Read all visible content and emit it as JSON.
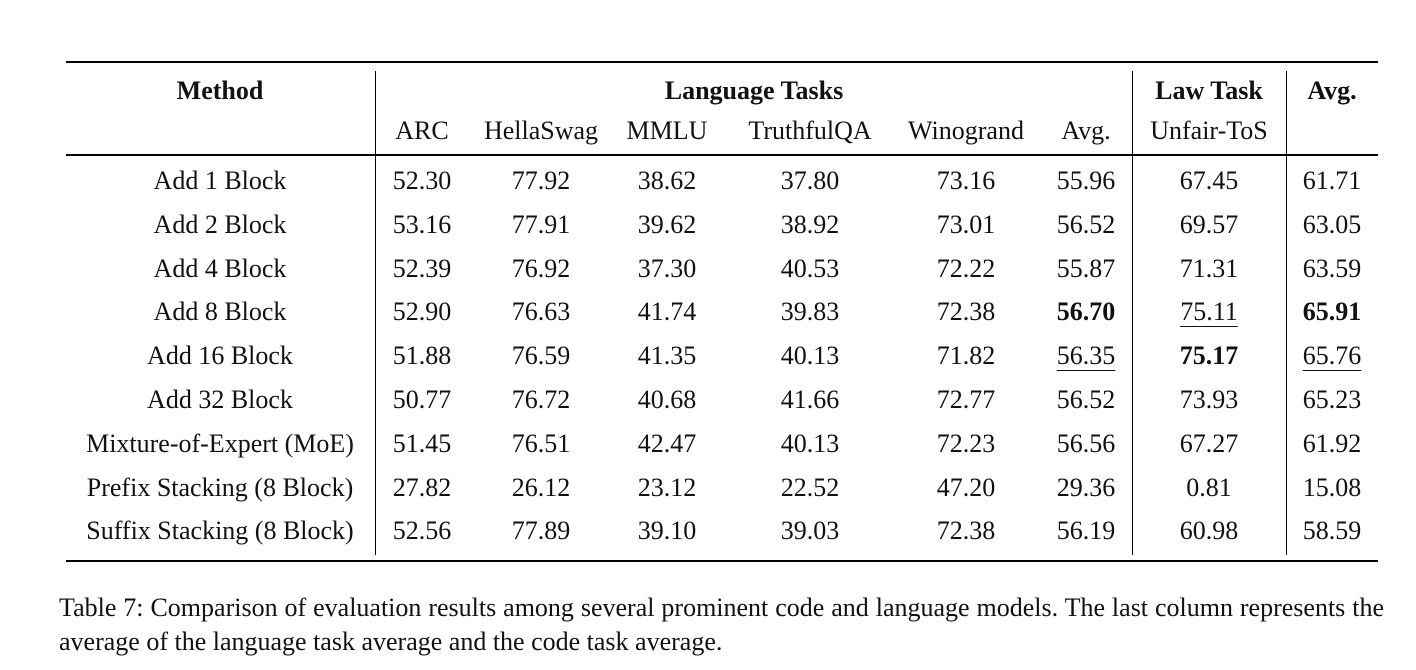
{
  "table": {
    "header_groups": {
      "method": "Method",
      "language_tasks": "Language Tasks",
      "law_task": "Law Task",
      "avg": "Avg."
    },
    "subheaders": [
      "ARC",
      "HellaSwag",
      "MMLU",
      "TruthfulQA",
      "Winogrand",
      "Avg.",
      "Unfair-ToS"
    ],
    "rows": [
      {
        "method": "Add 1 Block",
        "values": [
          "52.30",
          "77.92",
          "38.62",
          "37.80",
          "73.16",
          "55.96",
          "67.45",
          "61.71"
        ],
        "bold": [],
        "underline": []
      },
      {
        "method": "Add 2 Block",
        "values": [
          "53.16",
          "77.91",
          "39.62",
          "38.92",
          "73.01",
          "56.52",
          "69.57",
          "63.05"
        ],
        "bold": [],
        "underline": []
      },
      {
        "method": "Add 4 Block",
        "values": [
          "52.39",
          "76.92",
          "37.30",
          "40.53",
          "72.22",
          "55.87",
          "71.31",
          "63.59"
        ],
        "bold": [],
        "underline": []
      },
      {
        "method": "Add 8 Block",
        "values": [
          "52.90",
          "76.63",
          "41.74",
          "39.83",
          "72.38",
          "56.70",
          "75.11",
          "65.91"
        ],
        "bold": [
          5,
          7
        ],
        "underline": [
          6
        ]
      },
      {
        "method": "Add 16 Block",
        "values": [
          "51.88",
          "76.59",
          "41.35",
          "40.13",
          "71.82",
          "56.35",
          "75.17",
          "65.76"
        ],
        "bold": [
          6
        ],
        "underline": [
          5,
          7
        ]
      },
      {
        "method": "Add 32 Block",
        "values": [
          "50.77",
          "76.72",
          "40.68",
          "41.66",
          "72.77",
          "56.52",
          "73.93",
          "65.23"
        ],
        "bold": [],
        "underline": []
      },
      {
        "method": "Mixture-of-Expert (MoE)",
        "values": [
          "51.45",
          "76.51",
          "42.47",
          "40.13",
          "72.23",
          "56.56",
          "67.27",
          "61.92"
        ],
        "bold": [],
        "underline": []
      },
      {
        "method": "Prefix Stacking (8 Block)",
        "values": [
          "27.82",
          "26.12",
          "23.12",
          "22.52",
          "47.20",
          "29.36",
          "0.81",
          "15.08"
        ],
        "bold": [],
        "underline": []
      },
      {
        "method": "Suffix Stacking (8 Block)",
        "values": [
          "52.56",
          "77.89",
          "39.10",
          "39.03",
          "72.38",
          "56.19",
          "60.98",
          "58.59"
        ],
        "bold": [],
        "underline": []
      }
    ]
  },
  "caption": "Table 7: Comparison of evaluation results among several prominent code and language models. The last column represents the average of the language task average and the code task average."
}
